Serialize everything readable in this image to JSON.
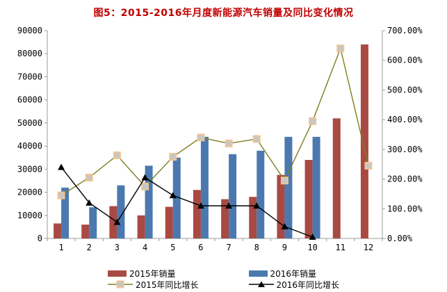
{
  "title": "图5：2015-2016年月度新能源汽车销量及同比变化情况",
  "colors": {
    "title_text": "#C00000",
    "bar_2015": "#A94943",
    "bar_2016": "#4B79AF",
    "line_2015": "#7E7E1E",
    "line_2015_marker_fill": "#C6C6C6",
    "line_2015_marker_border": "#F0C493",
    "line_2016": "#000000",
    "axis": "#9B9B9B",
    "text": "#000000",
    "background": "#FFFFFF"
  },
  "chart_data": {
    "type": "bar+line combo",
    "title": "图5：2015-2016年月度新能源汽车销量及同比变化情况",
    "categories": [
      "1",
      "2",
      "3",
      "4",
      "5",
      "6",
      "7",
      "8",
      "9",
      "10",
      "11",
      "12"
    ],
    "gridlines": false,
    "legend_position": "bottom",
    "left_axis": {
      "min": 0,
      "max": 90000,
      "step": 10000,
      "tick_labels": [
        "0",
        "10000",
        "20000",
        "30000",
        "40000",
        "50000",
        "60000",
        "70000",
        "80000",
        "90000"
      ]
    },
    "right_axis": {
      "min": 0,
      "max": 700,
      "step": 100,
      "tick_labels": [
        "0.00%",
        "100.00%",
        "200.00%",
        "300.00%",
        "400.00%",
        "500.00%",
        "600.00%",
        "700.00%"
      ]
    },
    "bar_series": [
      {
        "name": "2015年销量",
        "axis": "left",
        "color_key": "bar_2015",
        "values": [
          6500,
          6000,
          14000,
          10000,
          13700,
          21000,
          17000,
          18000,
          27500,
          34000,
          52000,
          84000
        ]
      },
      {
        "name": "2016年销量",
        "axis": "left",
        "color_key": "bar_2016",
        "values": [
          22000,
          13500,
          23000,
          31500,
          35000,
          44000,
          36500,
          38000,
          44000,
          44000,
          null,
          null
        ]
      }
    ],
    "line_series": [
      {
        "name": "2015年同比增长",
        "axis": "right",
        "marker": "square",
        "color_key": "line_2015",
        "values_pct": [
          145,
          205,
          280,
          175,
          275,
          340,
          320,
          335,
          195,
          395,
          640,
          245
        ]
      },
      {
        "name": "2016年同比增长",
        "axis": "right",
        "marker": "triangle",
        "color_key": "line_2016",
        "values_pct": [
          240,
          120,
          55,
          205,
          145,
          110,
          110,
          110,
          40,
          5,
          null,
          null
        ]
      }
    ]
  }
}
